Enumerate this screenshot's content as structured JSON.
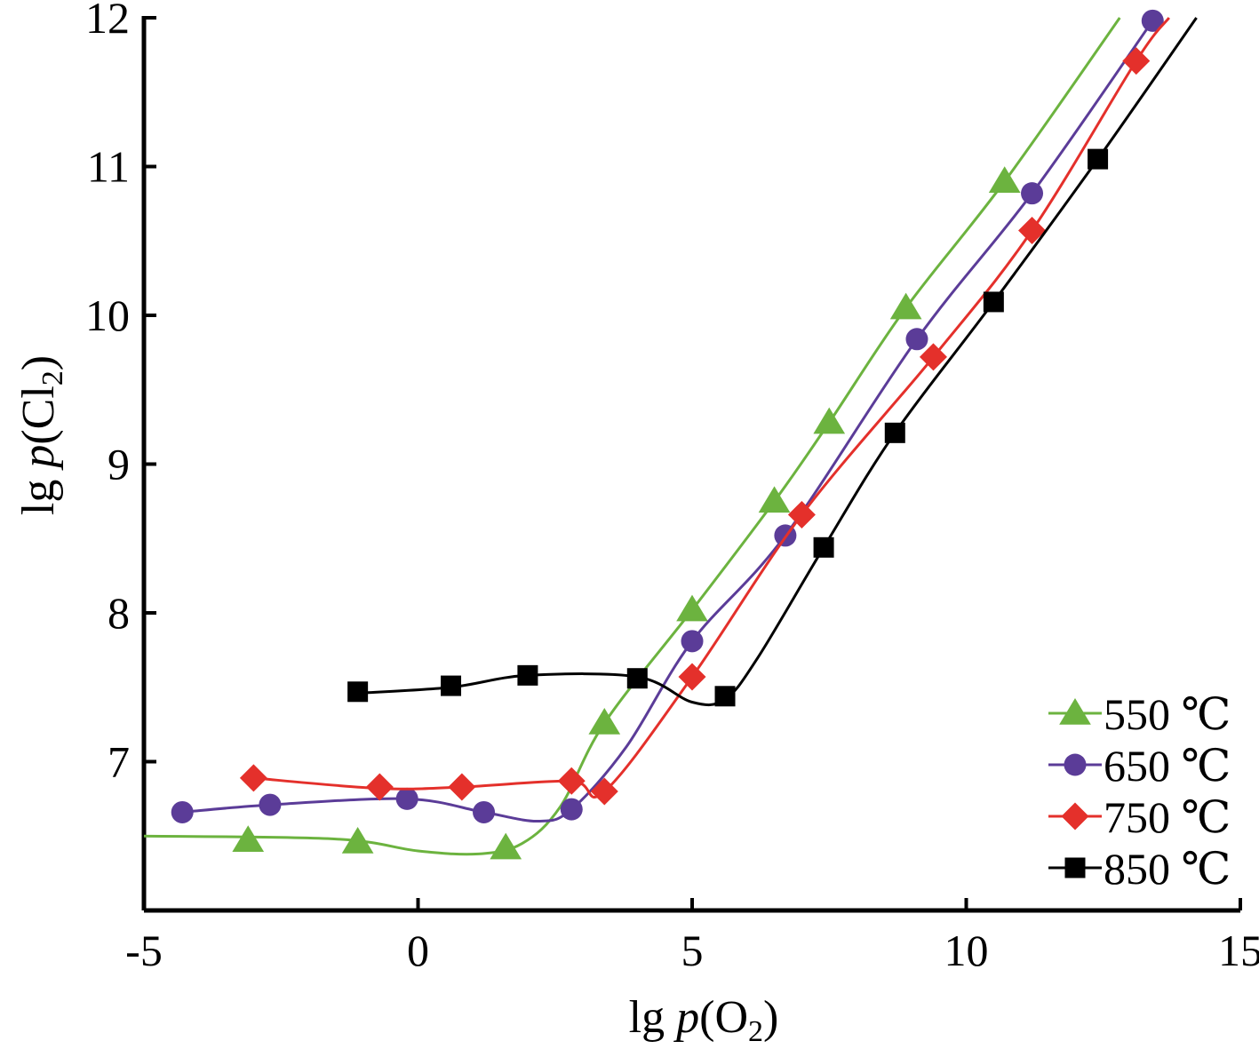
{
  "chart_data": {
    "type": "line",
    "xlabel_parts": [
      "lg ",
      "p",
      "(O",
      "2",
      ")"
    ],
    "ylabel_parts": [
      "lg ",
      "p",
      "(Cl",
      "2",
      ")"
    ],
    "xlim": [
      -5,
      15
    ],
    "ylim": [
      6,
      12
    ],
    "xticks": [
      -5,
      0,
      5,
      10,
      15
    ],
    "yticks": [
      7,
      8,
      9,
      10,
      11,
      12
    ],
    "grid": false,
    "legend_position": "bottom-right",
    "series": [
      {
        "name": "550 ℃",
        "color": "#6cb33f",
        "marker": "triangle",
        "points": [
          [
            -3.1,
            6.47
          ],
          [
            -1.1,
            6.46
          ],
          [
            1.6,
            6.42
          ],
          [
            3.4,
            7.26
          ],
          [
            5.0,
            8.02
          ],
          [
            6.5,
            8.75
          ],
          [
            7.5,
            9.28
          ],
          [
            8.9,
            10.05
          ],
          [
            10.7,
            10.9
          ]
        ],
        "curve": [
          [
            -5,
            6.5
          ],
          [
            -1.5,
            6.48
          ],
          [
            0,
            6.4
          ],
          [
            1.1,
            6.38
          ],
          [
            1.9,
            6.45
          ],
          [
            2.6,
            6.7
          ],
          [
            3.4,
            7.26
          ],
          [
            5.0,
            8.02
          ],
          [
            6.5,
            8.75
          ],
          [
            7.5,
            9.28
          ],
          [
            8.9,
            10.05
          ],
          [
            10.7,
            10.9
          ],
          [
            12.8,
            12.0
          ]
        ]
      },
      {
        "name": "650 ℃",
        "color": "#5b3c98",
        "marker": "circle",
        "points": [
          [
            -4.3,
            6.66
          ],
          [
            -2.7,
            6.71
          ],
          [
            -0.2,
            6.75
          ],
          [
            1.2,
            6.66
          ],
          [
            2.8,
            6.68
          ],
          [
            5.0,
            7.81
          ],
          [
            6.7,
            8.52
          ],
          [
            9.1,
            9.84
          ],
          [
            11.2,
            10.82
          ],
          [
            13.4,
            11.98
          ]
        ],
        "curve": [
          [
            -4.3,
            6.66
          ],
          [
            -2.7,
            6.71
          ],
          [
            -0.2,
            6.75
          ],
          [
            1.2,
            6.66
          ],
          [
            2.2,
            6.6
          ],
          [
            2.8,
            6.68
          ],
          [
            3.8,
            7.1
          ],
          [
            5.0,
            7.81
          ],
          [
            6.7,
            8.52
          ],
          [
            9.1,
            9.84
          ],
          [
            11.2,
            10.82
          ],
          [
            13.4,
            11.98
          ]
        ]
      },
      {
        "name": "750 ℃",
        "color": "#e4302b",
        "marker": "diamond",
        "points": [
          [
            -3.0,
            6.89
          ],
          [
            -0.7,
            6.83
          ],
          [
            0.8,
            6.83
          ],
          [
            2.8,
            6.87
          ],
          [
            3.4,
            6.8
          ],
          [
            5.0,
            7.57
          ],
          [
            7.0,
            8.66
          ],
          [
            9.4,
            9.72
          ],
          [
            11.2,
            10.57
          ],
          [
            13.1,
            11.71
          ]
        ],
        "curve": [
          [
            -3.0,
            6.89
          ],
          [
            -0.7,
            6.82
          ],
          [
            0.8,
            6.83
          ],
          [
            2.8,
            6.87
          ],
          [
            3.4,
            6.8
          ],
          [
            5.0,
            7.57
          ],
          [
            7.0,
            8.66
          ],
          [
            9.4,
            9.72
          ],
          [
            11.2,
            10.57
          ],
          [
            13.1,
            11.71
          ],
          [
            13.7,
            12.0
          ]
        ]
      },
      {
        "name": "850 ℃",
        "color": "#000000",
        "marker": "square",
        "points": [
          [
            -1.1,
            7.47
          ],
          [
            0.6,
            7.51
          ],
          [
            2.0,
            7.58
          ],
          [
            4.0,
            7.56
          ],
          [
            5.6,
            7.44
          ],
          [
            7.4,
            8.44
          ],
          [
            8.7,
            9.21
          ],
          [
            10.5,
            10.09
          ],
          [
            12.4,
            11.05
          ]
        ],
        "curve": [
          [
            -1.1,
            7.46
          ],
          [
            0.6,
            7.5
          ],
          [
            2.0,
            7.58
          ],
          [
            4.0,
            7.57
          ],
          [
            5.0,
            7.4
          ],
          [
            5.6,
            7.42
          ],
          [
            6.2,
            7.7
          ],
          [
            7.4,
            8.44
          ],
          [
            8.7,
            9.21
          ],
          [
            10.5,
            10.09
          ],
          [
            12.4,
            11.05
          ],
          [
            14.2,
            12.0
          ]
        ]
      }
    ]
  }
}
